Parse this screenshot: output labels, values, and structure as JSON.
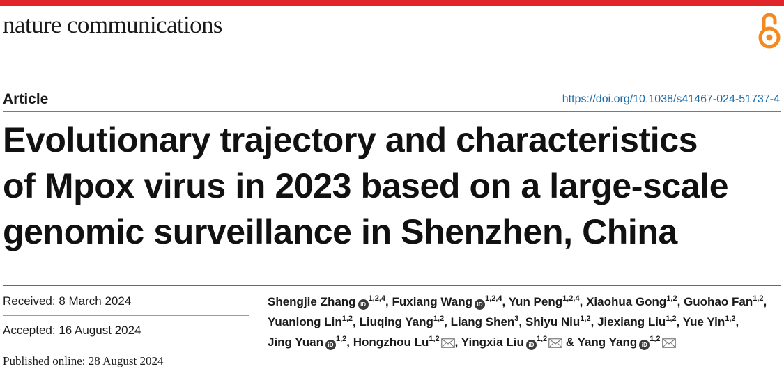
{
  "header": {
    "journal": "nature communications",
    "access_icon": "open-access-icon",
    "accent_color": "#e0262b",
    "access_color": "#f3891f"
  },
  "article": {
    "type": "Article",
    "doi": "https://doi.org/10.1038/s41467-024-51737-4",
    "title_lines": [
      "Evolutionary trajectory and characteristics",
      "of Mpox virus in 2023 based on a large-scale",
      "genomic surveillance in Shenzhen, China"
    ]
  },
  "dates": {
    "received": "Received: 8 March 2024",
    "accepted": "Accepted: 16 August 2024",
    "published": "Published online: 28 August 2024"
  },
  "authors": [
    {
      "name": "Shengjie Zhang",
      "orcid": true,
      "aff": "1,2,4",
      "mail": false,
      "after": ","
    },
    {
      "name": "Fuxiang Wang",
      "orcid": true,
      "aff": "1,2,4",
      "mail": false,
      "after": ","
    },
    {
      "name": "Yun Peng",
      "orcid": false,
      "aff": "1,2,4",
      "mail": false,
      "after": ","
    },
    {
      "name": "Xiaohua Gong",
      "orcid": false,
      "aff": "1,2",
      "mail": false,
      "after": ","
    },
    {
      "name": "Guohao Fan",
      "orcid": false,
      "aff": "1,2",
      "mail": false,
      "after": ","
    },
    {
      "name": "Yuanlong Lin",
      "orcid": false,
      "aff": "1,2",
      "mail": false,
      "after": ","
    },
    {
      "name": "Liuqing Yang",
      "orcid": false,
      "aff": "1,2",
      "mail": false,
      "after": ","
    },
    {
      "name": "Liang Shen",
      "orcid": false,
      "aff": "3",
      "mail": false,
      "after": ","
    },
    {
      "name": "Shiyu Niu",
      "orcid": false,
      "aff": "1,2",
      "mail": false,
      "after": ","
    },
    {
      "name": "Jiexiang Liu",
      "orcid": false,
      "aff": "1,2",
      "mail": false,
      "after": ","
    },
    {
      "name": "Yue Yin",
      "orcid": false,
      "aff": "1,2",
      "mail": false,
      "after": ","
    },
    {
      "name": "Jing Yuan",
      "orcid": true,
      "aff": "1,2",
      "mail": false,
      "after": ","
    },
    {
      "name": "Hongzhou Lu",
      "orcid": false,
      "aff": "1,2",
      "mail": true,
      "after": ","
    },
    {
      "name": "Yingxia Liu",
      "orcid": true,
      "aff": "1,2",
      "mail": true,
      "after": " &"
    },
    {
      "name": "Yang Yang",
      "orcid": true,
      "aff": "1,2",
      "mail": true,
      "after": ""
    }
  ]
}
